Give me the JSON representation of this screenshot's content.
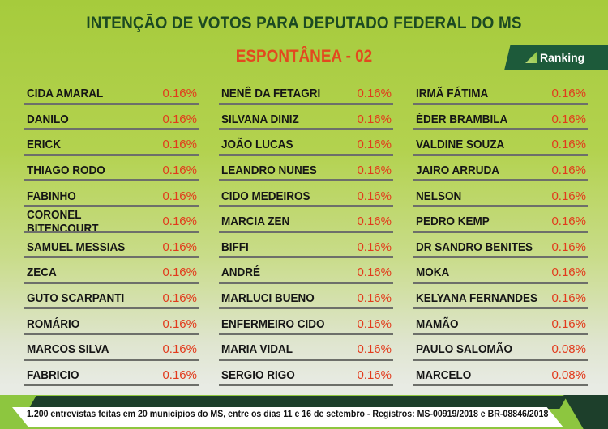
{
  "title": "INTENÇÃO DE VOTOS PARA DEPUTADO FEDERAL DO MS",
  "subtitle": "ESPONTÂNEA - 02",
  "logo": {
    "text": "Ranking",
    "brand_color": "#1d5a3a"
  },
  "columns": [
    [
      {
        "name": "CIDA AMARAL",
        "pct": "0.16%"
      },
      {
        "name": "DANILO",
        "pct": "0.16%"
      },
      {
        "name": "ERICK",
        "pct": "0.16%"
      },
      {
        "name": "THIAGO RODO",
        "pct": "0.16%"
      },
      {
        "name": "FABINHO",
        "pct": "0.16%"
      },
      {
        "name": "CORONEL BITENCOURT",
        "pct": "0.16%"
      },
      {
        "name": "SAMUEL MESSIAS",
        "pct": "0.16%"
      },
      {
        "name": "ZECA",
        "pct": "0.16%"
      },
      {
        "name": "GUTO SCARPANTI",
        "pct": "0.16%"
      },
      {
        "name": "ROMÁRIO",
        "pct": "0.16%"
      },
      {
        "name": "MARCOS SILVA",
        "pct": "0.16%"
      },
      {
        "name": "FABRICIO",
        "pct": "0.16%"
      }
    ],
    [
      {
        "name": "NENÊ DA FETAGRI",
        "pct": "0.16%"
      },
      {
        "name": "SILVANA DINIZ",
        "pct": "0.16%"
      },
      {
        "name": "JOÃO LUCAS",
        "pct": "0.16%"
      },
      {
        "name": "LEANDRO NUNES",
        "pct": "0.16%"
      },
      {
        "name": "CIDO MEDEIROS",
        "pct": "0.16%"
      },
      {
        "name": "MARCIA ZEN",
        "pct": "0.16%"
      },
      {
        "name": "BIFFI",
        "pct": "0.16%"
      },
      {
        "name": "ANDRÉ",
        "pct": "0.16%"
      },
      {
        "name": "MARLUCI BUENO",
        "pct": "0.16%"
      },
      {
        "name": "ENFERMEIRO CIDO",
        "pct": "0.16%"
      },
      {
        "name": "MARIA VIDAL",
        "pct": "0.16%"
      },
      {
        "name": "SERGIO RIGO",
        "pct": "0.16%"
      }
    ],
    [
      {
        "name": "IRMÃ FÁTIMA",
        "pct": "0.16%"
      },
      {
        "name": "ÉDER BRAMBILA",
        "pct": "0.16%"
      },
      {
        "name": "VALDINE SOUZA",
        "pct": "0.16%"
      },
      {
        "name": "JAIRO ARRUDA",
        "pct": "0.16%"
      },
      {
        "name": "NELSON",
        "pct": "0.16%"
      },
      {
        "name": "PEDRO KEMP",
        "pct": "0.16%"
      },
      {
        "name": "DR SANDRO BENITES",
        "pct": "0.16%"
      },
      {
        "name": "MOKA",
        "pct": "0.16%"
      },
      {
        "name": "KELYANA FERNANDES",
        "pct": "0.16%"
      },
      {
        "name": "MAMÃO",
        "pct": "0.16%"
      },
      {
        "name": "PAULO SALOMÃO",
        "pct": "0.08%"
      },
      {
        "name": "MARCELO",
        "pct": "0.08%"
      }
    ]
  ],
  "footer": "1.200 entrevistas feitas em 20 municípios do MS, entre os dias 11 e 16 de setembro - Registros:  MS-00919/2018 e BR-08846/2018"
}
